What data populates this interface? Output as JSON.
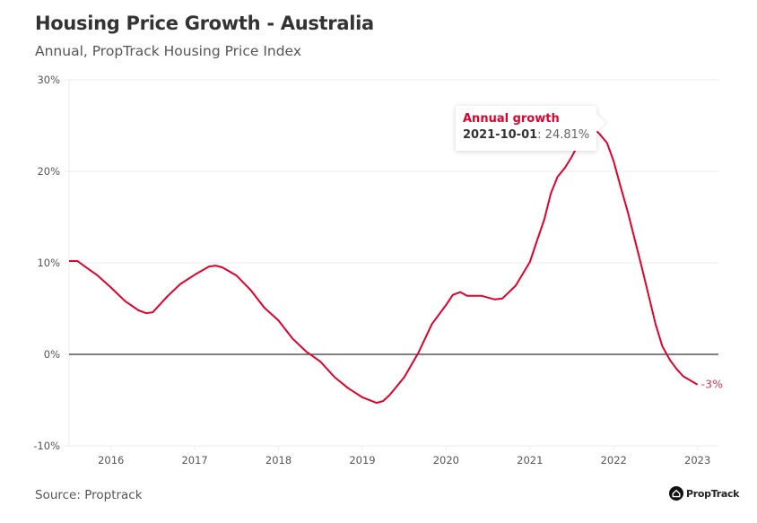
{
  "header": {
    "title": "Housing Price Growth - Australia",
    "subtitle": "Annual, PropTrack Housing Price Index"
  },
  "footer": {
    "source": "Source: Proptrack",
    "brand": "PropTrack",
    "brand_icon": "house-logo-icon"
  },
  "tooltip": {
    "series": "Annual growth",
    "date": "2021-10-01",
    "separator": ": ",
    "value": "24.81%"
  },
  "colors": {
    "line": "#e4002b",
    "zero_line": "#000000",
    "grid": "#ebebeb",
    "end_label": "#e8355a"
  },
  "chart_data": {
    "type": "line",
    "title": "Housing Price Growth - Australia",
    "subtitle": "Annual, PropTrack Housing Price Index",
    "xlabel": "",
    "ylabel": "",
    "ylim": [
      -10,
      30
    ],
    "xlim": [
      "2015-07-01",
      "2023-01-01"
    ],
    "y_ticks": [
      -10,
      0,
      10,
      20,
      30
    ],
    "y_tick_labels": [
      "-10%",
      "0%",
      "10%",
      "20%",
      "30%"
    ],
    "x_ticks": [
      2016,
      2017,
      2018,
      2019,
      2020,
      2021,
      2022,
      2023
    ],
    "x_tick_labels": [
      "2016",
      "2017",
      "2018",
      "2019",
      "2020",
      "2021",
      "2022",
      "2023"
    ],
    "grid": "horizontal",
    "legend": "none",
    "end_label": "-3%",
    "series": [
      {
        "name": "Annual growth",
        "points": [
          {
            "x": 2015.5,
            "y": 10.2
          },
          {
            "x": 2015.6,
            "y": 10.2
          },
          {
            "x": 2015.75,
            "y": 9.2
          },
          {
            "x": 2015.83,
            "y": 8.7
          },
          {
            "x": 2016.0,
            "y": 7.3
          },
          {
            "x": 2016.17,
            "y": 5.8
          },
          {
            "x": 2016.33,
            "y": 4.8
          },
          {
            "x": 2016.42,
            "y": 4.5
          },
          {
            "x": 2016.5,
            "y": 4.6
          },
          {
            "x": 2016.67,
            "y": 6.3
          },
          {
            "x": 2016.83,
            "y": 7.7
          },
          {
            "x": 2017.0,
            "y": 8.7
          },
          {
            "x": 2017.17,
            "y": 9.6
          },
          {
            "x": 2017.25,
            "y": 9.7
          },
          {
            "x": 2017.33,
            "y": 9.5
          },
          {
            "x": 2017.5,
            "y": 8.6
          },
          {
            "x": 2017.67,
            "y": 7.0
          },
          {
            "x": 2017.83,
            "y": 5.1
          },
          {
            "x": 2018.0,
            "y": 3.7
          },
          {
            "x": 2018.17,
            "y": 1.7
          },
          {
            "x": 2018.33,
            "y": 0.3
          },
          {
            "x": 2018.5,
            "y": -0.8
          },
          {
            "x": 2018.67,
            "y": -2.5
          },
          {
            "x": 2018.83,
            "y": -3.7
          },
          {
            "x": 2019.0,
            "y": -4.7
          },
          {
            "x": 2019.17,
            "y": -5.3
          },
          {
            "x": 2019.25,
            "y": -5.1
          },
          {
            "x": 2019.33,
            "y": -4.4
          },
          {
            "x": 2019.5,
            "y": -2.5
          },
          {
            "x": 2019.67,
            "y": 0.2
          },
          {
            "x": 2019.83,
            "y": 3.3
          },
          {
            "x": 2020.0,
            "y": 5.4
          },
          {
            "x": 2020.08,
            "y": 6.5
          },
          {
            "x": 2020.17,
            "y": 6.8
          },
          {
            "x": 2020.25,
            "y": 6.4
          },
          {
            "x": 2020.42,
            "y": 6.4
          },
          {
            "x": 2020.58,
            "y": 6.0
          },
          {
            "x": 2020.67,
            "y": 6.1
          },
          {
            "x": 2020.83,
            "y": 7.5
          },
          {
            "x": 2021.0,
            "y": 10.1
          },
          {
            "x": 2021.08,
            "y": 12.3
          },
          {
            "x": 2021.17,
            "y": 14.7
          },
          {
            "x": 2021.25,
            "y": 17.6
          },
          {
            "x": 2021.33,
            "y": 19.4
          },
          {
            "x": 2021.42,
            "y": 20.4
          },
          {
            "x": 2021.5,
            "y": 21.6
          },
          {
            "x": 2021.58,
            "y": 23.0
          },
          {
            "x": 2021.67,
            "y": 24.0
          },
          {
            "x": 2021.75,
            "y": 24.81
          },
          {
            "x": 2021.83,
            "y": 24.1
          },
          {
            "x": 2021.92,
            "y": 23.1
          },
          {
            "x": 2022.0,
            "y": 21.1
          },
          {
            "x": 2022.08,
            "y": 18.4
          },
          {
            "x": 2022.17,
            "y": 15.5
          },
          {
            "x": 2022.25,
            "y": 12.6
          },
          {
            "x": 2022.33,
            "y": 9.7
          },
          {
            "x": 2022.42,
            "y": 6.3
          },
          {
            "x": 2022.5,
            "y": 3.3
          },
          {
            "x": 2022.58,
            "y": 0.9
          },
          {
            "x": 2022.67,
            "y": -0.6
          },
          {
            "x": 2022.75,
            "y": -1.6
          },
          {
            "x": 2022.83,
            "y": -2.4
          },
          {
            "x": 2023.0,
            "y": -3.3
          }
        ]
      }
    ]
  }
}
